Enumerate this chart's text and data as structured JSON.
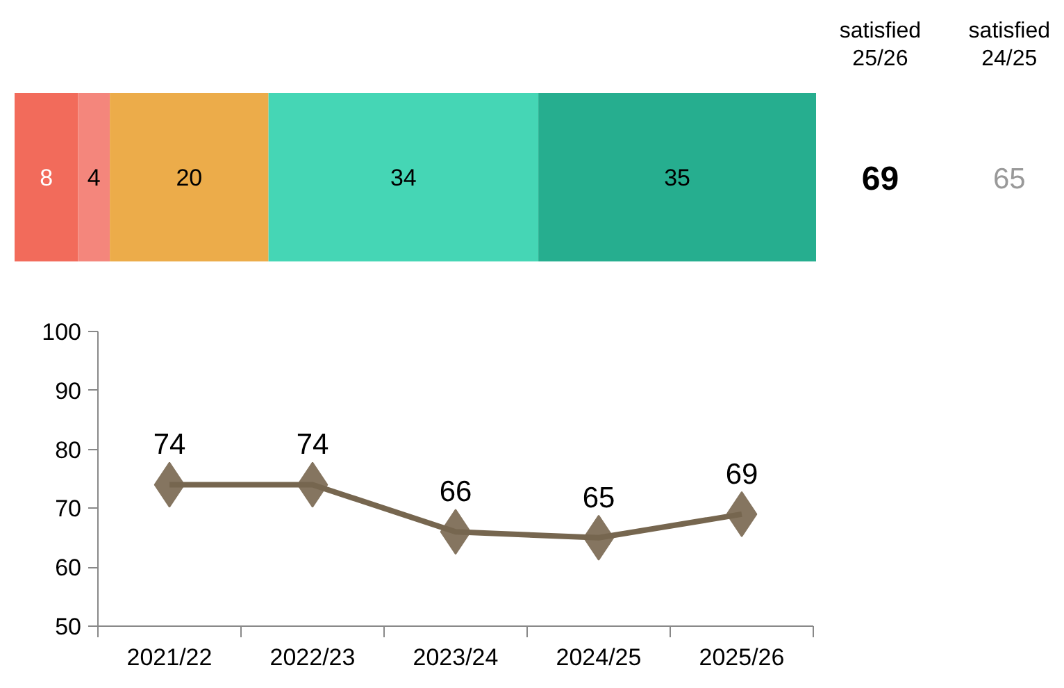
{
  "chart_data": [
    {
      "type": "bar",
      "orientation": "horizontal",
      "stacked": true,
      "categories": [
        null
      ],
      "data_labels": true,
      "grid": false,
      "tick_labels": false,
      "series": [
        {
          "color": "#f26b5b",
          "values": [
            8
          ]
        },
        {
          "color": "#f4867c",
          "values": [
            4
          ]
        },
        {
          "color": "#ecac4a",
          "values": [
            20
          ]
        },
        {
          "color": "#45d6b5",
          "values": [
            34
          ]
        },
        {
          "color": "#26ae8f",
          "values": [
            35
          ]
        }
      ]
    },
    {
      "type": "other",
      "annotations": [
        "satisfied 25/26",
        "satisfied 24/25",
        "69",
        "65"
      ]
    },
    {
      "type": "line",
      "categories": [
        "2021/22",
        "2022/23",
        "2023/24",
        "2024/25",
        "2025/26"
      ],
      "values": [
        74,
        74,
        66,
        65,
        69
      ],
      "color": "#76664f",
      "colors": [
        "#857560",
        "#857560",
        "#857560",
        "#857560",
        "#857560"
      ],
      "marker": "diamond",
      "line_style": "solid",
      "data_labels": true,
      "grid": false,
      "ylim": [
        50,
        100
      ],
      "yticks": [
        50,
        60,
        70,
        80,
        90,
        100
      ]
    }
  ]
}
